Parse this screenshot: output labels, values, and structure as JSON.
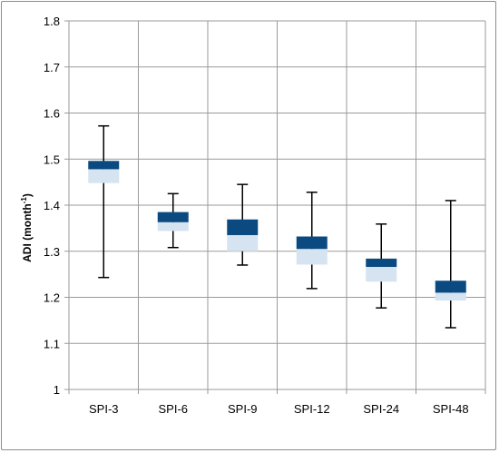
{
  "chart_data": {
    "type": "box",
    "ylabel": "ADI (month",
    "ylabel_superscript": "-1",
    "ylabel_suffix": ")",
    "ylim": [
      1,
      1.8
    ],
    "yticks": [
      1,
      1.1,
      1.2,
      1.3,
      1.4,
      1.5,
      1.6,
      1.7,
      1.8
    ],
    "ytick_labels": [
      "1",
      "1.1",
      "1.2",
      "1.3",
      "1.4",
      "1.5",
      "1.6",
      "1.7",
      "1.8"
    ],
    "grid": true,
    "categories": [
      "SPI-3",
      "SPI-6",
      "SPI-9",
      "SPI-12",
      "SPI-24",
      "SPI-48"
    ],
    "boxes": [
      {
        "min": 1.243,
        "q1": 1.448,
        "median": 1.478,
        "q3": 1.496,
        "max": 1.572
      },
      {
        "min": 1.308,
        "q1": 1.344,
        "median": 1.363,
        "q3": 1.385,
        "max": 1.425
      },
      {
        "min": 1.27,
        "q1": 1.3,
        "median": 1.335,
        "q3": 1.369,
        "max": 1.445
      },
      {
        "min": 1.219,
        "q1": 1.271,
        "median": 1.305,
        "q3": 1.332,
        "max": 1.428
      },
      {
        "min": 1.177,
        "q1": 1.234,
        "median": 1.266,
        "q3": 1.284,
        "max": 1.359
      },
      {
        "min": 1.134,
        "q1": 1.193,
        "median": 1.21,
        "q3": 1.236,
        "max": 1.41
      }
    ],
    "colors": {
      "upper_box": "#0b4a80",
      "lower_box": "#d6e3f0",
      "whisker": "#000000",
      "grid": "#9a9a9a"
    }
  }
}
